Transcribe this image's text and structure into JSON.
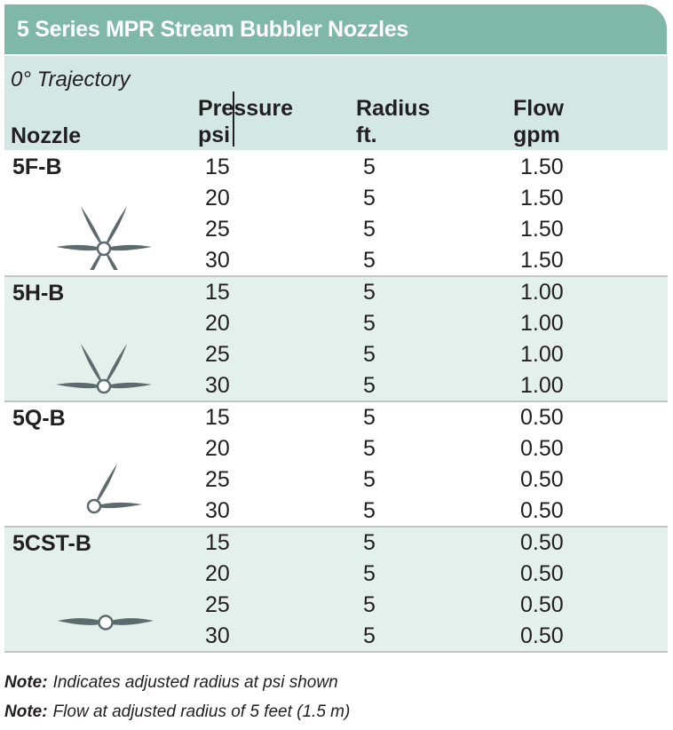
{
  "title": "5 Series MPR Stream Bubbler Nozzles",
  "trajectory": "0° Trajectory",
  "headers": {
    "nozzle": "Nozzle",
    "pressure": "Pressure",
    "pressure_unit": "psi",
    "radius": "Radius",
    "radius_unit": "ft.",
    "flow": "Flow",
    "flow_unit": "gpm"
  },
  "groups": [
    {
      "name": "5F-B",
      "icon": "full-circle-spray-pattern-icon",
      "rows": [
        {
          "psi": "15",
          "radius": "5",
          "flow": "1.50"
        },
        {
          "psi": "20",
          "radius": "5",
          "flow": "1.50"
        },
        {
          "psi": "25",
          "radius": "5",
          "flow": "1.50"
        },
        {
          "psi": "30",
          "radius": "5",
          "flow": "1.50"
        }
      ]
    },
    {
      "name": "5H-B",
      "icon": "half-circle-spray-pattern-icon",
      "rows": [
        {
          "psi": "15",
          "radius": "5",
          "flow": "1.00"
        },
        {
          "psi": "20",
          "radius": "5",
          "flow": "1.00"
        },
        {
          "psi": "25",
          "radius": "5",
          "flow": "1.00"
        },
        {
          "psi": "30",
          "radius": "5",
          "flow": "1.00"
        }
      ]
    },
    {
      "name": "5Q-B",
      "icon": "quarter-circle-spray-pattern-icon",
      "rows": [
        {
          "psi": "15",
          "radius": "5",
          "flow": "0.50"
        },
        {
          "psi": "20",
          "radius": "5",
          "flow": "0.50"
        },
        {
          "psi": "25",
          "radius": "5",
          "flow": "0.50"
        },
        {
          "psi": "30",
          "radius": "5",
          "flow": "0.50"
        }
      ]
    },
    {
      "name": "5CST-B",
      "icon": "center-strip-spray-pattern-icon",
      "rows": [
        {
          "psi": "15",
          "radius": "5",
          "flow": "0.50"
        },
        {
          "psi": "20",
          "radius": "5",
          "flow": "0.50"
        },
        {
          "psi": "25",
          "radius": "5",
          "flow": "0.50"
        },
        {
          "psi": "30",
          "radius": "5",
          "flow": "0.50"
        }
      ]
    }
  ],
  "notes": [
    {
      "label": "Note:",
      "text": "Indicates adjusted radius at psi shown"
    },
    {
      "label": "Note:",
      "text": "Flow at adjusted radius of 5 feet (1.5 m)"
    }
  ],
  "colors": {
    "title_bg": "#7fb8a8",
    "header_bg": "#d4e8e3",
    "row_shade": "#e3f0ec",
    "icon": "#5e6b6e"
  }
}
